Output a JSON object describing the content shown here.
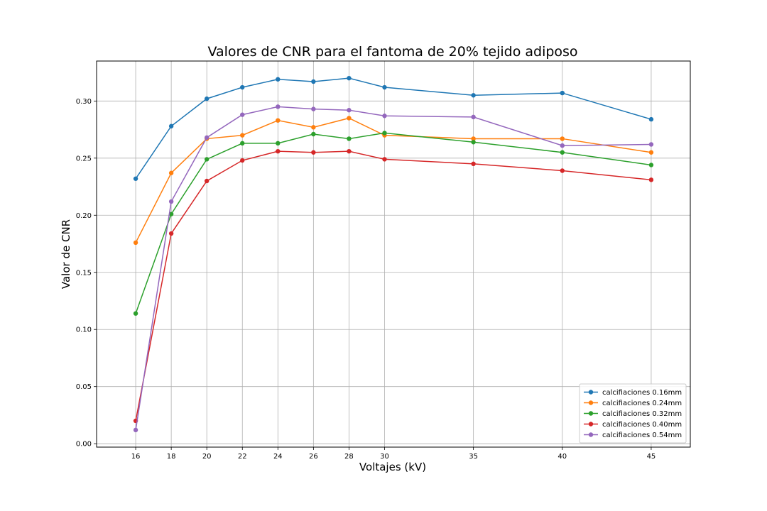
{
  "chart_data": {
    "type": "line",
    "title": "Valores de CNR para el fantoma de 20% tejido adiposo",
    "xlabel": "Voltajes (kV)",
    "ylabel": "Valor de CNR",
    "x": [
      16,
      18,
      20,
      22,
      24,
      26,
      28,
      30,
      35,
      40,
      45
    ],
    "x_ticks": [
      "16",
      "18",
      "20",
      "22",
      "24",
      "26",
      "28",
      "30",
      "35",
      "40",
      "45"
    ],
    "y_ticks": [
      "0.00",
      "0.05",
      "0.10",
      "0.15",
      "0.20",
      "0.25",
      "0.30"
    ],
    "xlim": [
      13.8,
      47.2
    ],
    "ylim": [
      -0.003,
      0.335
    ],
    "grid": true,
    "legend_position": "lower-right",
    "series": [
      {
        "name": "calcifiaciones 0.16mm",
        "color": "#1f77b4",
        "values": [
          0.232,
          0.278,
          0.302,
          0.312,
          0.319,
          0.317,
          0.32,
          0.312,
          0.305,
          0.307,
          0.284
        ]
      },
      {
        "name": "calcifiaciones 0.24mm",
        "color": "#ff7f0e",
        "values": [
          0.176,
          0.237,
          0.267,
          0.27,
          0.283,
          0.277,
          0.285,
          0.27,
          0.267,
          0.267,
          0.255
        ]
      },
      {
        "name": "calcifiaciones 0.32mm",
        "color": "#2ca02c",
        "values": [
          0.114,
          0.201,
          0.249,
          0.263,
          0.263,
          0.271,
          0.267,
          0.272,
          0.264,
          0.255,
          0.244
        ]
      },
      {
        "name": "calcifiaciones 0.40mm",
        "color": "#d62728",
        "values": [
          0.02,
          0.184,
          0.23,
          0.248,
          0.256,
          0.255,
          0.256,
          0.249,
          0.245,
          0.239,
          0.231
        ]
      },
      {
        "name": "calcifiaciones 0.54mm",
        "color": "#9467bd",
        "values": [
          0.012,
          0.212,
          0.268,
          0.288,
          0.295,
          0.293,
          0.292,
          0.287,
          0.286,
          0.261,
          0.262
        ]
      }
    ]
  }
}
